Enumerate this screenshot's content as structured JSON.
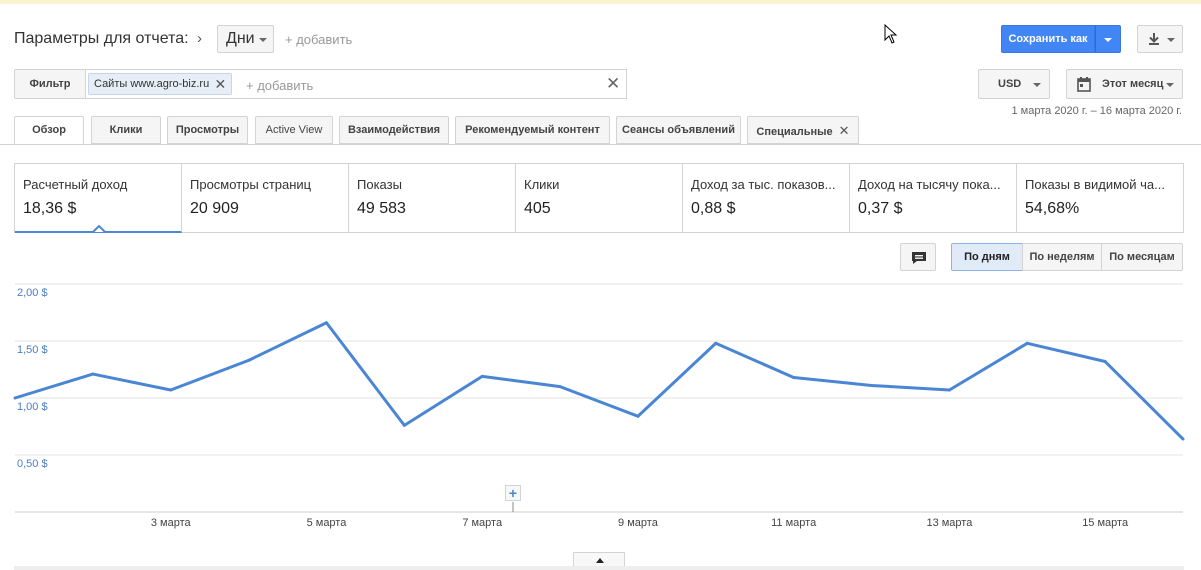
{
  "header": {
    "title": "Параметры для отчета:",
    "dimension": "Дни",
    "add_label": "+ добавить",
    "save_label": "Сохранить как"
  },
  "filter": {
    "button_label": "Фильтр",
    "chip_label": "Сайты www.agro-biz.ru",
    "add_placeholder": "+ добавить"
  },
  "currency": "USD",
  "date_select": "Этот месяц",
  "date_range": "1 марта 2020 г. – 16 марта 2020 г.",
  "tabs": [
    {
      "label": "Обзор"
    },
    {
      "label": "Клики"
    },
    {
      "label": "Просмотры"
    },
    {
      "label": "Active View"
    },
    {
      "label": "Взаимодействия"
    },
    {
      "label": "Рекомендуемый контент"
    },
    {
      "label": "Сеансы объявлений"
    },
    {
      "label": "Специальные"
    }
  ],
  "metrics": [
    {
      "label": "Расчетный доход",
      "value": "18,36 $"
    },
    {
      "label": "Просмотры страниц",
      "value": "20 909"
    },
    {
      "label": "Показы",
      "value": "49 583"
    },
    {
      "label": "Клики",
      "value": "405"
    },
    {
      "label": "Доход за тыс. показов...",
      "value": "0,88 $"
    },
    {
      "label": "Доход на тысячу пока...",
      "value": "0,37 $"
    },
    {
      "label": "Показы в видимой ча...",
      "value": "54,68%"
    }
  ],
  "period_buttons": {
    "day": "По дням",
    "week": "По неделям",
    "month": "По месяцам"
  },
  "chart_data": {
    "type": "line",
    "title": "",
    "xlabel": "",
    "ylabel": "",
    "x": [
      1,
      2,
      3,
      4,
      5,
      6,
      7,
      8,
      9,
      10,
      11,
      12,
      13,
      14,
      15,
      16
    ],
    "xtick_values": [
      3,
      5,
      7,
      9,
      11,
      13,
      15
    ],
    "xtick_labels": [
      "3 марта",
      "5 марта",
      "7 марта",
      "9 марта",
      "11 марта",
      "13 марта",
      "15 марта"
    ],
    "ytick_values": [
      0.5,
      1.0,
      1.5,
      2.0
    ],
    "ytick_labels": [
      "0,50 $",
      "1,00 $",
      "1,50 $",
      "2,00 $"
    ],
    "ylim": [
      0,
      2.0
    ],
    "grid": true,
    "series": [
      {
        "values": [
          1.0,
          1.21,
          1.07,
          1.33,
          1.66,
          0.76,
          1.19,
          1.1,
          0.84,
          1.48,
          1.18,
          1.11,
          1.07,
          1.48,
          1.32,
          0.64
        ],
        "color": "#4a86d4"
      }
    ]
  }
}
